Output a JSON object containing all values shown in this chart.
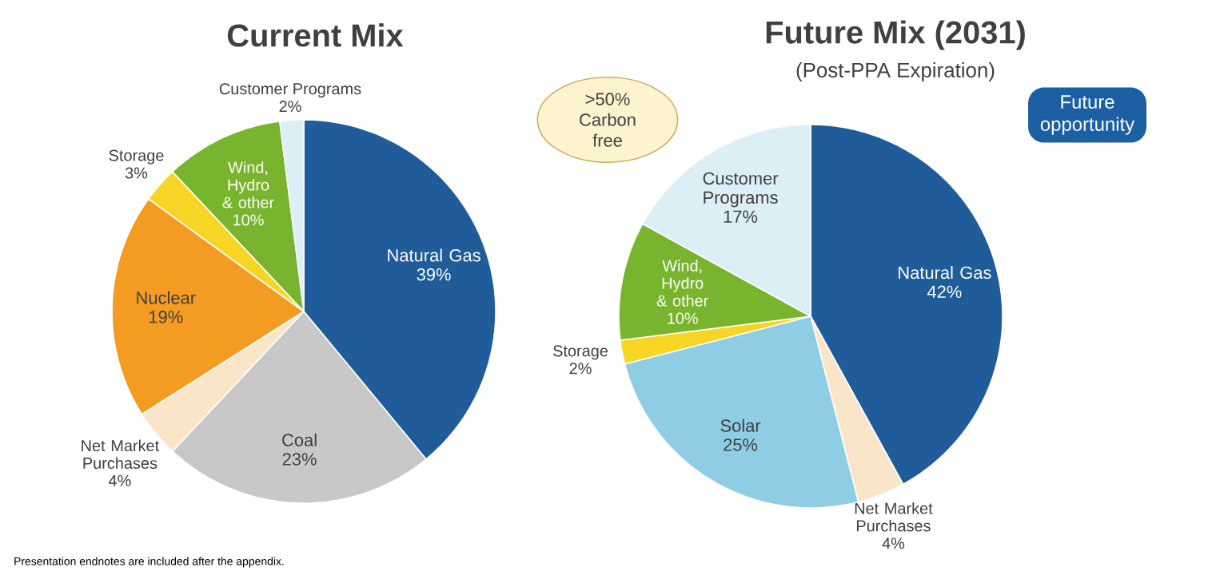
{
  "chart_data": [
    {
      "type": "pie",
      "title": "Current Mix",
      "categories": [
        "Natural Gas",
        "Coal",
        "Net Market Purchases",
        "Nuclear",
        "Storage",
        "Wind, Hydro & other",
        "Customer Programs"
      ],
      "values": [
        39,
        23,
        4,
        19,
        3,
        10,
        2
      ],
      "value_labels": [
        "39%",
        "23%",
        "4%",
        "19%",
        "3%",
        "10%",
        "2%"
      ],
      "colors": [
        "#1f5c99",
        "#c8c8c8",
        "#fbe5c8",
        "#f49b22",
        "#f7d524",
        "#78b42e",
        "#dceef6"
      ],
      "annotations": [
        "Presentation endnotes are included after the appendix."
      ]
    },
    {
      "type": "pie",
      "title": "Future Mix (2031)",
      "subtitle": "(Post-PPA Expiration)",
      "categories": [
        "Natural Gas",
        "Net Market Purchases",
        "Solar",
        "Storage",
        "Wind, Hydro & other",
        "Customer Programs"
      ],
      "values": [
        42,
        4,
        25,
        2,
        10,
        17
      ],
      "value_labels": [
        "42%",
        "4%",
        "25%",
        "2%",
        "10%",
        "17%"
      ],
      "colors": [
        "#1f5c99",
        "#fbe5c8",
        "#8fcde5",
        "#f7d524",
        "#78b42e",
        "#dceef6"
      ],
      "annotations": [
        ">50% Carbon free",
        "Future opportunity"
      ]
    }
  ]
}
